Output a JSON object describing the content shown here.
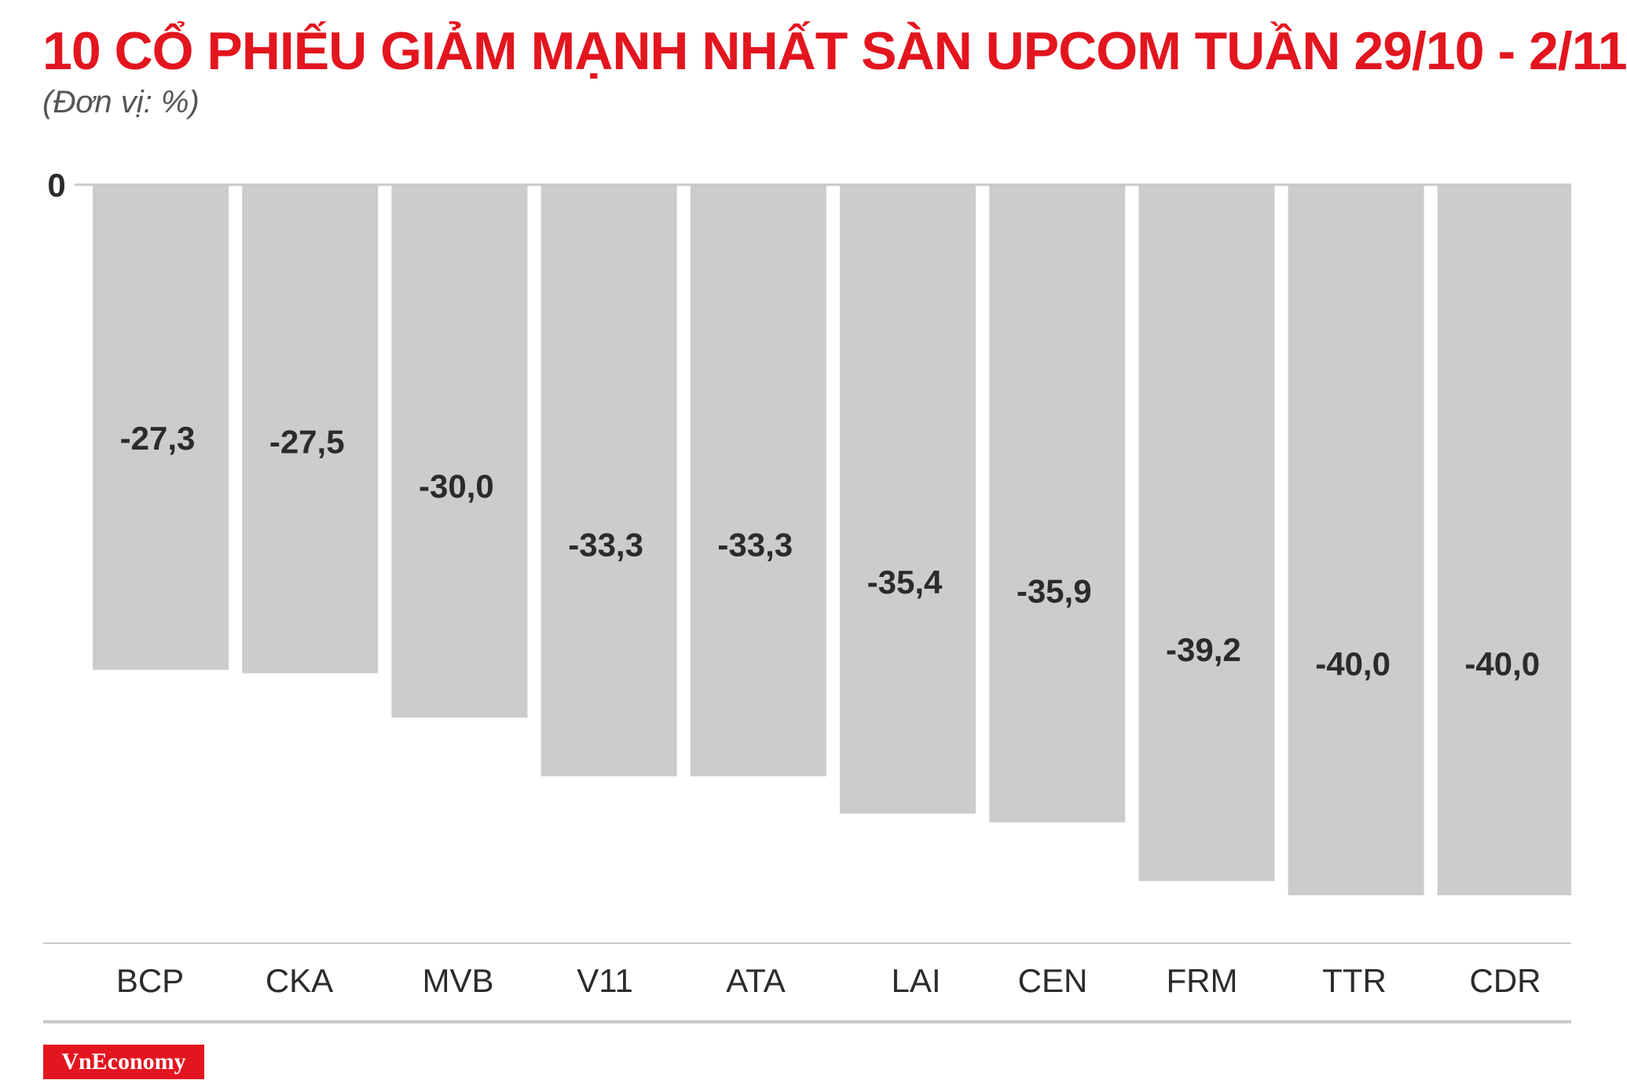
{
  "title": "10 CỔ PHIẾU GIẢM MẠNH NHẤT SÀN UPCOM TUẦN 29/10 - 2/11",
  "subtitle": "(Đơn vị: %)",
  "logo_text": "VnEconomy",
  "colors": {
    "title": "#e3151f",
    "bar": "#cccbcd",
    "label": "#2b2b2b",
    "axis": "#c8c8c8",
    "logo_bg": "#e3151f"
  },
  "chart_data": {
    "type": "bar",
    "orientation": "vertical-negative",
    "categories": [
      "BCP",
      "CKA",
      "MVB",
      "V11",
      "ATA",
      "LAI",
      "CEN",
      "FRM",
      "TTR",
      "CDR"
    ],
    "values": [
      -27.3,
      -27.5,
      -30.0,
      -33.3,
      -33.3,
      -35.4,
      -35.9,
      -39.2,
      -40.0,
      -40.0
    ],
    "value_labels": [
      "-27,3",
      "-27,5",
      "-30,0",
      "-33,3",
      "-33,3",
      "-35,4",
      "-35,9",
      "-39,2",
      "-40,0",
      "-40,0"
    ],
    "y_tick_labels": [
      "0"
    ],
    "ylim": [
      -40,
      0
    ],
    "grid": false,
    "legend": "none"
  }
}
